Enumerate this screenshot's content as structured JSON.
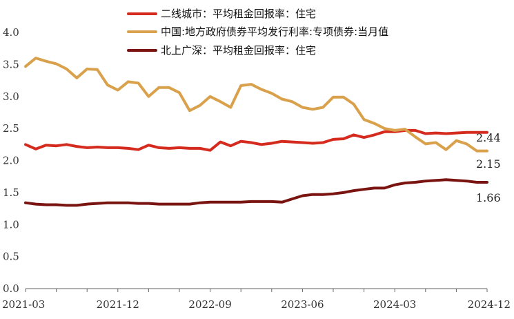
{
  "chart_data": {
    "type": "line",
    "title": "",
    "xlabel": "",
    "ylabel": "",
    "ylim": [
      0,
      4.0
    ],
    "yticks": [
      "0.0",
      "0.5",
      "1.0",
      "1.5",
      "2.0",
      "2.5",
      "3.0",
      "3.5",
      "4.0"
    ],
    "x_tick_labels": [
      "2021-03",
      "2021-12",
      "2022-09",
      "2023-06",
      "2024-03",
      "2024-12"
    ],
    "x": [
      "2021-03",
      "2021-04",
      "2021-05",
      "2021-06",
      "2021-07",
      "2021-08",
      "2021-09",
      "2021-10",
      "2021-11",
      "2021-12",
      "2022-01",
      "2022-02",
      "2022-03",
      "2022-04",
      "2022-05",
      "2022-06",
      "2022-07",
      "2022-08",
      "2022-09",
      "2022-10",
      "2022-11",
      "2022-12",
      "2023-01",
      "2023-02",
      "2023-03",
      "2023-04",
      "2023-05",
      "2023-06",
      "2023-07",
      "2023-08",
      "2023-09",
      "2023-10",
      "2023-11",
      "2023-12",
      "2024-01",
      "2024-02",
      "2024-03",
      "2024-04",
      "2024-05",
      "2024-06",
      "2024-07",
      "2024-08",
      "2024-09",
      "2024-10",
      "2024-11",
      "2024-12"
    ],
    "legend_position": "top",
    "series": [
      {
        "name": "二线城市：平均租金回报率：住宅",
        "color": "#d52a1e",
        "end_label": "2.44",
        "values": [
          2.25,
          2.18,
          2.24,
          2.23,
          2.25,
          2.22,
          2.2,
          2.21,
          2.2,
          2.2,
          2.19,
          2.17,
          2.24,
          2.2,
          2.19,
          2.2,
          2.19,
          2.19,
          2.16,
          2.29,
          2.23,
          2.3,
          2.28,
          2.25,
          2.27,
          2.3,
          2.29,
          2.28,
          2.27,
          2.28,
          2.33,
          2.34,
          2.4,
          2.36,
          2.4,
          2.45,
          2.45,
          2.47,
          2.47,
          2.42,
          2.43,
          2.42,
          2.43,
          2.44,
          2.44,
          2.44
        ]
      },
      {
        "name": "中国:地方政府债券平均发行利率:专项债券:当月值",
        "color": "#d9a14b",
        "end_label": "2.15",
        "values": [
          3.47,
          3.6,
          3.55,
          3.51,
          3.43,
          3.29,
          3.43,
          3.42,
          3.18,
          3.1,
          3.23,
          3.21,
          3.0,
          3.14,
          3.14,
          3.06,
          2.78,
          2.86,
          3.0,
          2.92,
          2.83,
          3.17,
          3.19,
          3.11,
          3.05,
          2.96,
          2.92,
          2.83,
          2.8,
          2.83,
          2.99,
          2.99,
          2.88,
          2.64,
          2.58,
          2.5,
          2.47,
          2.49,
          2.37,
          2.26,
          2.28,
          2.17,
          2.31,
          2.26,
          2.15,
          2.15
        ]
      },
      {
        "name": "北上广深：平均租金回报率：住宅",
        "color": "#7a1410",
        "end_label": "1.66",
        "values": [
          1.34,
          1.32,
          1.31,
          1.31,
          1.3,
          1.3,
          1.32,
          1.33,
          1.34,
          1.34,
          1.34,
          1.33,
          1.33,
          1.32,
          1.32,
          1.32,
          1.32,
          1.34,
          1.35,
          1.35,
          1.35,
          1.35,
          1.36,
          1.36,
          1.36,
          1.35,
          1.4,
          1.45,
          1.47,
          1.47,
          1.48,
          1.5,
          1.53,
          1.55,
          1.57,
          1.57,
          1.62,
          1.65,
          1.66,
          1.68,
          1.69,
          1.7,
          1.69,
          1.68,
          1.66,
          1.66
        ]
      }
    ]
  }
}
